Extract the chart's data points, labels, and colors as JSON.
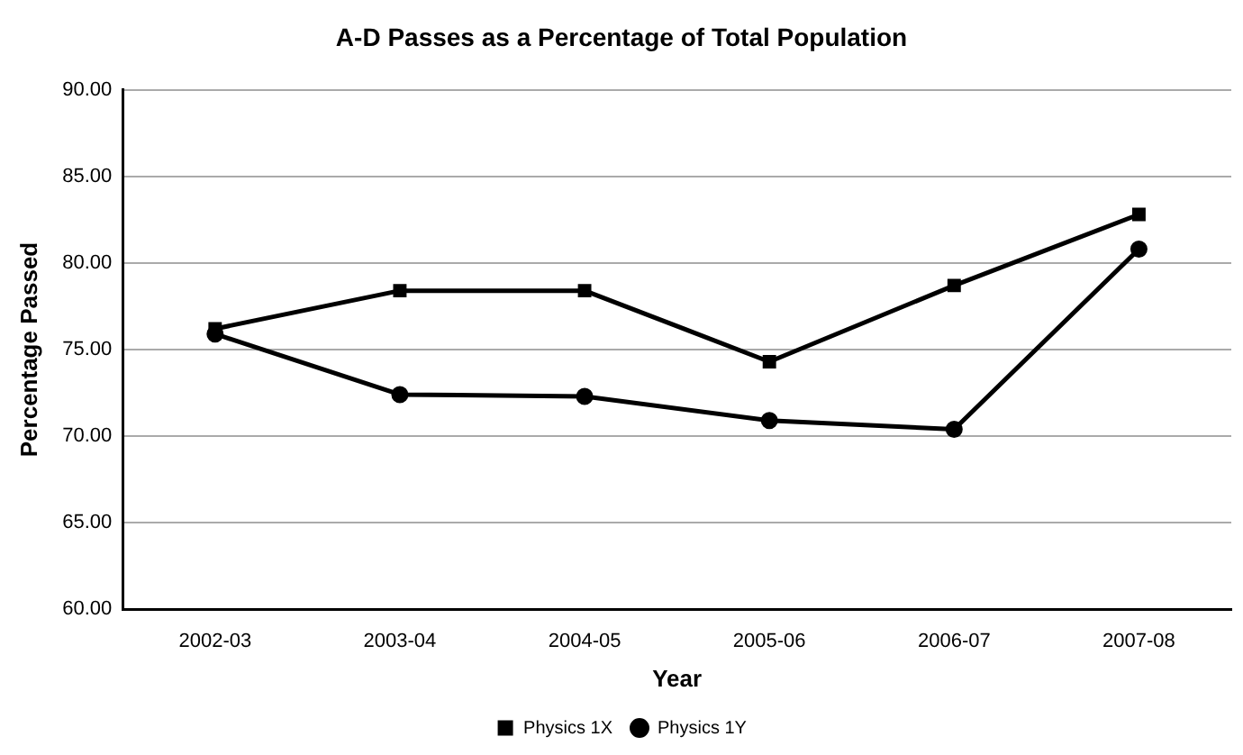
{
  "chart_data": {
    "type": "line",
    "title": "A-D Passes as a Percentage of Total Population",
    "xlabel": "Year",
    "ylabel": "Percentage Passed",
    "categories": [
      "2002-03",
      "2003-04",
      "2004-05",
      "2005-06",
      "2006-07",
      "2007-08"
    ],
    "series": [
      {
        "name": "Physics 1X",
        "color": "#000000",
        "marker": "square",
        "values": [
          76.2,
          78.4,
          78.4,
          74.3,
          78.7,
          82.8
        ]
      },
      {
        "name": "Physics 1Y",
        "color": "#000000",
        "marker": "circle",
        "values": [
          75.9,
          72.4,
          72.3,
          70.9,
          70.4,
          80.8
        ]
      }
    ],
    "ylim": [
      60,
      90
    ],
    "yticks": [
      {
        "value": 60,
        "label": "60.00"
      },
      {
        "value": 65,
        "label": "65.00"
      },
      {
        "value": 70,
        "label": "70.00"
      },
      {
        "value": 75,
        "label": "75.00"
      },
      {
        "value": 80,
        "label": "80.00"
      },
      {
        "value": 85,
        "label": "85.00"
      },
      {
        "value": 90,
        "label": "90.00"
      }
    ],
    "grid": "y",
    "legend": "bottom",
    "line_style": "solid"
  }
}
